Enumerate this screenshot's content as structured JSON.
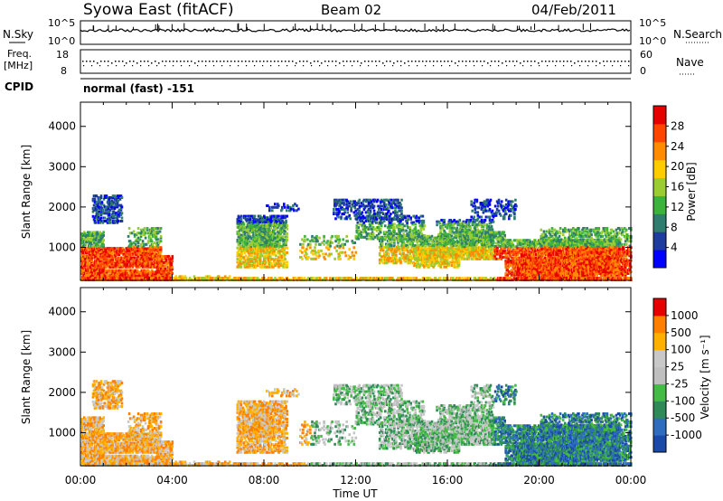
{
  "header": {
    "station": "Syowa East (fitACF)",
    "beam": "Beam 02",
    "date": "04/Feb/2011"
  },
  "top_panels": {
    "nsky_label": "N.Sky",
    "nsearch_label": "N.Search",
    "noise_ticks_left": [
      "10^5",
      "10^0"
    ],
    "noise_ticks_right": [
      "10^5",
      "10^0"
    ],
    "freq_label_line1": "Freq.",
    "freq_label_line2": "[MHz]",
    "freq_ticks": [
      "18",
      "8"
    ],
    "nave_label": "Nave",
    "nave_ticks": [
      "60",
      "0"
    ],
    "cpid_label": "CPID",
    "cpid_value": "normal (fast) -151"
  },
  "chart_data": [
    {
      "type": "heatmap",
      "panel": "power",
      "ylabel": "Slant Range [km]",
      "xlabel": "",
      "y_ticks": [
        1000,
        2000,
        3000,
        4000
      ],
      "ylim": [
        180,
        4600
      ],
      "xlim": [
        0,
        24
      ],
      "colorbar_label": "Power [dB]",
      "colorbar_ticks": [
        "28",
        "24",
        "20",
        "16",
        "12",
        "8",
        "4"
      ],
      "colorbar_colors": [
        "#0000ff",
        "#1e3c9e",
        "#2e7d6e",
        "#3cb43c",
        "#9bcd32",
        "#ffcc00",
        "#ff8c00",
        "#ff4500",
        "#e60000"
      ]
    },
    {
      "type": "heatmap",
      "panel": "velocity",
      "ylabel": "Slant Range [km]",
      "xlabel": "Time UT",
      "x_ticks": [
        "00:00",
        "04:00",
        "08:00",
        "12:00",
        "16:00",
        "20:00",
        "00:00"
      ],
      "y_ticks": [
        1000,
        2000,
        3000,
        4000
      ],
      "ylim": [
        180,
        4600
      ],
      "xlim": [
        0,
        24
      ],
      "colorbar_label": "Velocity [m s⁻¹]",
      "colorbar_ticks": [
        "1000",
        "500",
        "100",
        "25",
        "-25",
        "-100",
        "-500",
        "-1000"
      ],
      "colorbar_colors": [
        "#1a4aa8",
        "#2e6cc0",
        "#2e8b57",
        "#44bb44",
        "#bfbfbf",
        "#c8c8c8",
        "#ffb000",
        "#ff7f00",
        "#e60000"
      ]
    }
  ]
}
